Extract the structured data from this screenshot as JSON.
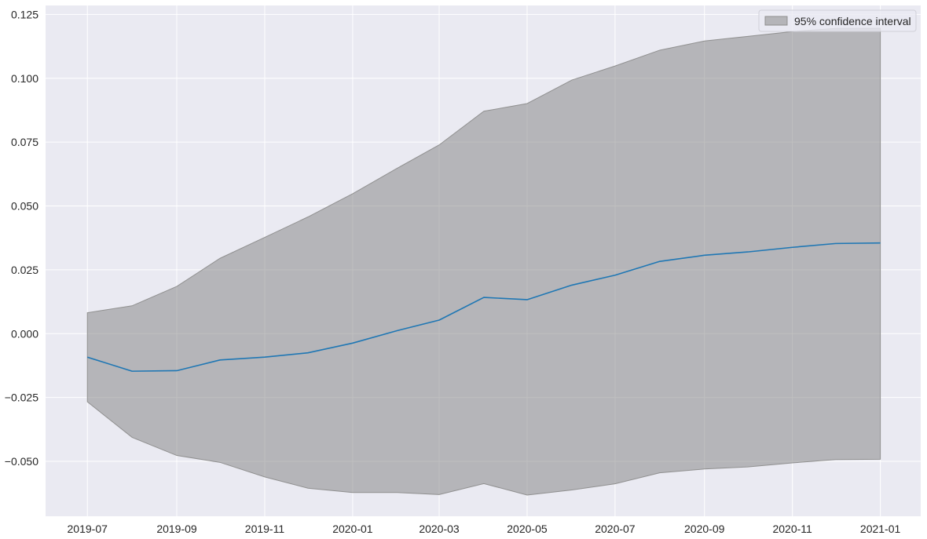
{
  "colors": {
    "plot_background": "#eaeaf2",
    "grid": "#ffffff",
    "line": "#1f77b4",
    "band_fill": "#808080",
    "band_edge": "#909090"
  },
  "chart_data": {
    "type": "line",
    "x": [
      "2019-07",
      "2019-08",
      "2019-09",
      "2019-10",
      "2019-11",
      "2019-12",
      "2020-01",
      "2020-02",
      "2020-03",
      "2020-04",
      "2020-05",
      "2020-06",
      "2020-07",
      "2020-08",
      "2020-09",
      "2020-10",
      "2020-11",
      "2020-12",
      "2021-01"
    ],
    "series": [
      {
        "values": [
          -0.0092,
          -0.0147,
          -0.0145,
          -0.0103,
          -0.0092,
          -0.0075,
          -0.0037,
          0.0012,
          0.0053,
          0.0142,
          0.0133,
          0.019,
          0.0229,
          0.0283,
          0.0307,
          0.032,
          0.0338,
          0.0353,
          0.0355
        ]
      }
    ],
    "band": {
      "name": "95% confidence interval",
      "lower": [
        -0.0267,
        -0.0406,
        -0.0477,
        -0.0504,
        -0.0561,
        -0.0605,
        -0.0622,
        -0.0622,
        -0.063,
        -0.0587,
        -0.0632,
        -0.0612,
        -0.0588,
        -0.0545,
        -0.053,
        -0.0522,
        -0.0506,
        -0.0493,
        -0.0492
      ],
      "upper": [
        0.0082,
        0.0109,
        0.0185,
        0.0295,
        0.0377,
        0.0457,
        0.0548,
        0.0648,
        0.0739,
        0.0871,
        0.0901,
        0.0993,
        0.1048,
        0.111,
        0.1146,
        0.1164,
        0.1183,
        0.1195,
        0.1196
      ]
    },
    "title": "",
    "xlabel": "",
    "ylabel": "",
    "ylim": [
      -0.0715,
      0.1285
    ],
    "xlim": [
      "2019-06-02",
      "2021-01-29"
    ],
    "xtick_labels": [
      "2019-07",
      "2019-09",
      "2019-11",
      "2020-01",
      "2020-03",
      "2020-05",
      "2020-07",
      "2020-09",
      "2020-11",
      "2021-01"
    ],
    "ytick_labels": [
      "−0.050",
      "−0.025",
      "0.000",
      "0.025",
      "0.050",
      "0.075",
      "0.100",
      "0.125"
    ],
    "yticks": [
      -0.05,
      -0.025,
      0,
      0.025,
      0.05,
      0.075,
      0.1,
      0.125
    ],
    "grid": true,
    "legend": {
      "position": "top-right",
      "entries": [
        "95% confidence interval"
      ]
    }
  }
}
